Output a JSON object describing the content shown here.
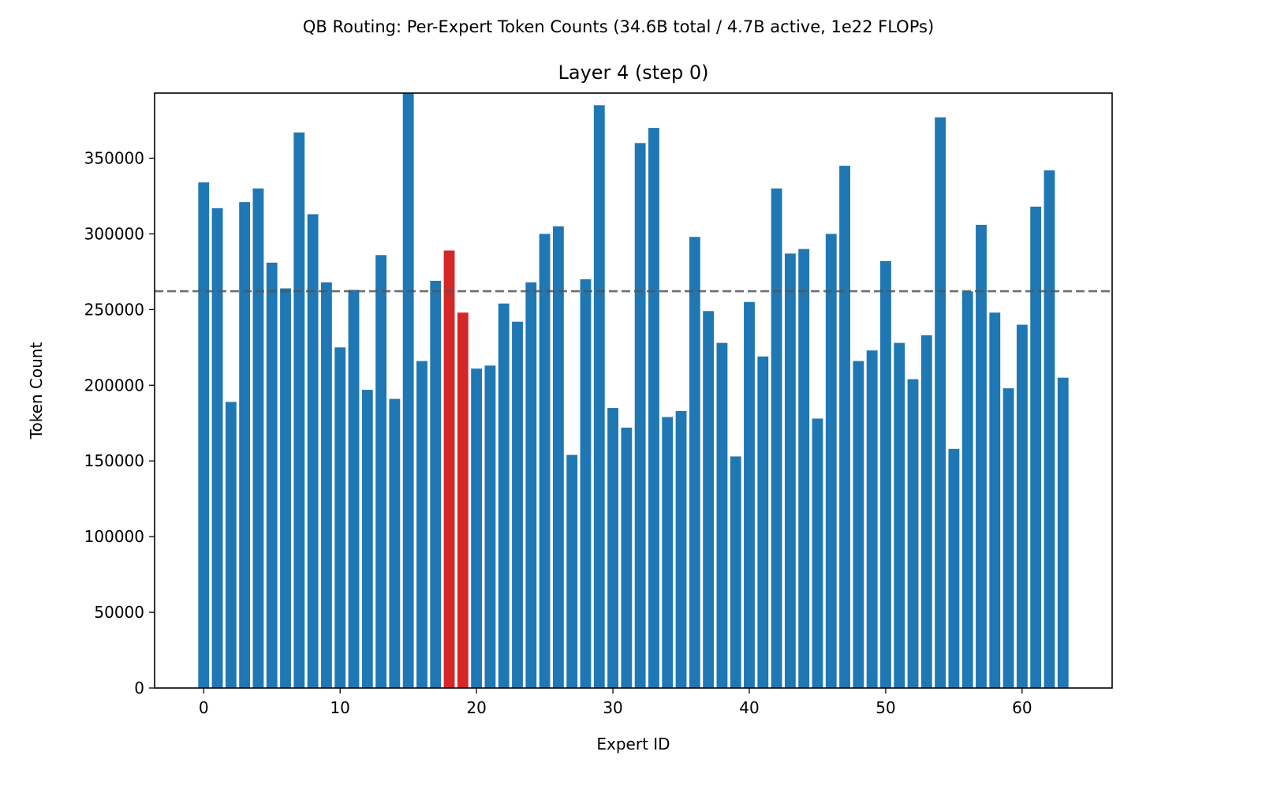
{
  "chart_data": {
    "type": "bar",
    "suptitle": "QB Routing: Per-Expert Token Counts (34.6B total / 4.7B active, 1e22 FLOPs)",
    "title": "Layer 4 (step 0)",
    "xlabel": "Expert ID",
    "ylabel": "Token Count",
    "xlim": [
      -3.6,
      66.6
    ],
    "ylim": [
      0,
      393000
    ],
    "xticks": [
      0,
      10,
      20,
      30,
      40,
      50,
      60
    ],
    "yticks": [
      0,
      50000,
      100000,
      150000,
      200000,
      250000,
      300000,
      350000
    ],
    "grid": false,
    "x": [
      0,
      1,
      2,
      3,
      4,
      5,
      6,
      7,
      8,
      9,
      10,
      11,
      12,
      13,
      14,
      15,
      16,
      17,
      18,
      19,
      20,
      21,
      22,
      23,
      24,
      25,
      26,
      27,
      28,
      29,
      30,
      31,
      32,
      33,
      34,
      35,
      36,
      37,
      38,
      39,
      40,
      41,
      42,
      43,
      44,
      45,
      46,
      47,
      48,
      49,
      50,
      51,
      52,
      53,
      54,
      55,
      56,
      57,
      58,
      59,
      60,
      61,
      62,
      63
    ],
    "values": [
      334000,
      317000,
      189000,
      321000,
      330000,
      281000,
      264000,
      367000,
      313000,
      268000,
      225000,
      263000,
      197000,
      286000,
      191000,
      400000,
      216000,
      269000,
      289000,
      248000,
      211000,
      213000,
      254000,
      242000,
      268000,
      300000,
      305000,
      154000,
      270000,
      385000,
      185000,
      172000,
      360000,
      370000,
      179000,
      183000,
      298000,
      249000,
      228000,
      153000,
      255000,
      219000,
      330000,
      287000,
      290000,
      178000,
      300000,
      345000,
      216000,
      223000,
      282000,
      228000,
      204000,
      233000,
      377000,
      158000,
      262000,
      306000,
      248000,
      198000,
      240000,
      318000,
      342000,
      205000
    ],
    "highlighted": [
      18,
      19
    ],
    "reference_line": {
      "value": 262144,
      "style": "dashed",
      "color": "#555555"
    },
    "colors": {
      "default": "#1f77b4",
      "highlight": "#d62728"
    }
  }
}
